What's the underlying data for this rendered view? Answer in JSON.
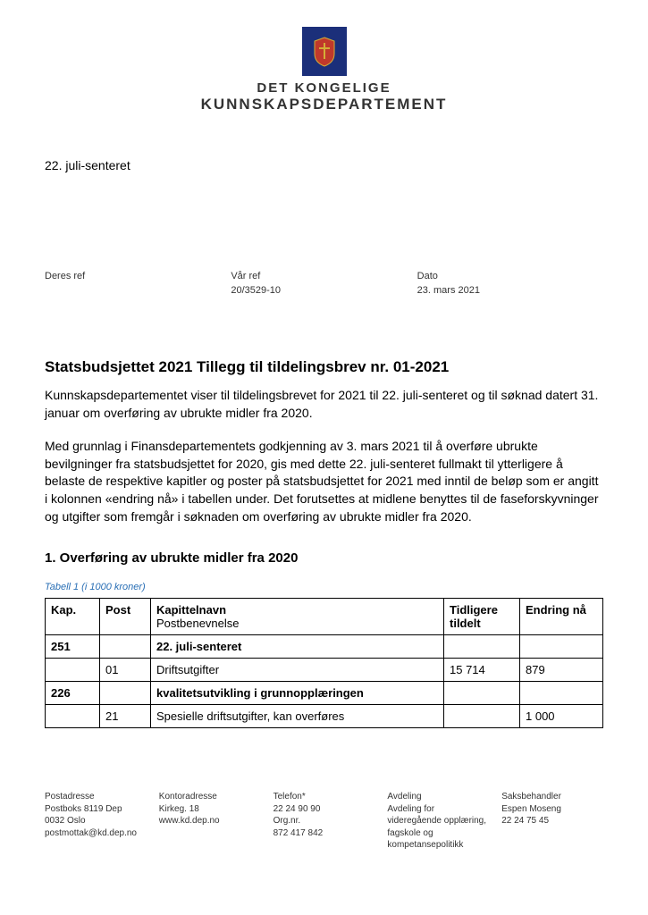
{
  "logo": {
    "line1": "DET KONGELIGE",
    "line2": "KUNNSKAPSDEPARTEMENT",
    "crest_bg": "#1b2f7a",
    "crest_accent": "#d4af37"
  },
  "recipient": "22. juli-senteret",
  "refs": {
    "deres_ref_label": "Deres ref",
    "deres_ref_value": "",
    "vaar_ref_label": "Vår ref",
    "vaar_ref_value": "20/3529-10",
    "dato_label": "Dato",
    "dato_value": "23. mars 2021"
  },
  "title": "Statsbudsjettet 2021 Tillegg til tildelingsbrev nr. 01-2021",
  "para1": "Kunnskapsdepartementet viser til tildelingsbrevet for 2021 til 22. juli-senteret og til søknad datert 31. januar om overføring av ubrukte midler fra 2020.",
  "para2": "Med grunnlag i Finansdepartementets godkjenning av 3. mars 2021 til å overføre ubrukte bevilgninger fra statsbudsjettet for 2020, gis med dette 22. juli-senteret fullmakt til ytterligere å belaste de respektive kapitler og poster på statsbudsjettet for 2021 med inntil de beløp som er angitt i kolonnen «endring nå» i tabellen under. Det forutsettes at midlene benyttes til de faseforskyvninger og utgifter som fremgår i søknaden om overføring av ubrukte midler fra 2020.",
  "section1_heading": "1.  Overføring av ubrukte midler fra 2020",
  "table": {
    "caption": "Tabell 1 (i 1000 kroner)",
    "headers": {
      "kap": "Kap.",
      "post": "Post",
      "name_line1": "Kapittelnavn",
      "name_line2": "Postbenevnelse",
      "prev": "Tidligere tildelt",
      "change": "Endring nå"
    },
    "rows": [
      {
        "kap": "251",
        "post": "",
        "name": "22. juli-senteret",
        "prev": "",
        "change": "",
        "bold": true
      },
      {
        "kap": "",
        "post": "01",
        "name": "Driftsutgifter",
        "prev": "15 714",
        "change": "879",
        "bold": false
      },
      {
        "kap": "226",
        "post": "",
        "name": "kvalitetsutvikling i grunnopplæringen",
        "prev": "",
        "change": "",
        "bold": true
      },
      {
        "kap": "",
        "post": "21",
        "name": "Spesielle driftsutgifter, kan overføres",
        "prev": "",
        "change": "1 000",
        "bold": false
      }
    ]
  },
  "footer": {
    "col1": {
      "h": "Postadresse",
      "l1": "Postboks 8119 Dep",
      "l2": "0032 Oslo",
      "l3": "postmottak@kd.dep.no"
    },
    "col2": {
      "h": "Kontoradresse",
      "l1": "Kirkeg. 18",
      "l2": "",
      "l3": "www.kd.dep.no"
    },
    "col3": {
      "h": "Telefon*",
      "l1": "22 24 90 90",
      "l2": "Org.nr.",
      "l3": "872 417 842"
    },
    "col4": {
      "h": "Avdeling",
      "l1": "Avdeling for videregående opplæring, fagskole og kompetansepolitikk"
    },
    "col5": {
      "h": "Saksbehandler",
      "l1": "Espen Moseng",
      "l2": "22 24 75 45"
    }
  }
}
